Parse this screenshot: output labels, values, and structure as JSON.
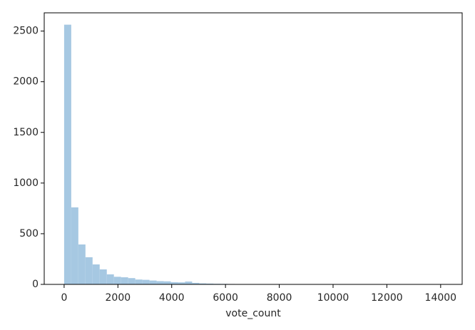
{
  "chart_data": {
    "type": "histogram",
    "xlabel": "vote_count",
    "color": "#a6c8e2",
    "bins": [
      0,
      264.5,
      528.9,
      793.4,
      1057.8,
      1322.3,
      1586.8,
      1851.2,
      2115.7,
      2380.2,
      2644.6,
      2909.1,
      3173.5,
      3438.0,
      3702.5,
      3966.9,
      4231.4,
      4495.8,
      4760.3,
      5024.8,
      5289.2,
      5553.7,
      5818.2,
      6082.6,
      6347.1,
      6611.5,
      6876.0,
      7140.5,
      7404.9,
      7669.4,
      7933.8,
      8198.3,
      8462.8,
      8727.2,
      8991.7,
      9256.2,
      9520.6,
      9785.1,
      10049.5,
      10314.0,
      10578.5,
      10842.9,
      11107.4,
      11371.8,
      11636.3,
      11900.8,
      12165.2,
      12429.7,
      12694.2,
      12958.6,
      13223.1,
      13487.5,
      13752.0
    ],
    "values": [
      2563,
      760,
      394,
      268,
      197,
      148,
      99,
      75,
      70,
      62,
      48,
      45,
      38,
      32,
      30,
      22,
      20,
      28,
      15,
      10,
      8,
      6,
      5,
      4,
      3,
      3,
      2,
      2,
      1,
      1,
      1,
      1,
      0,
      1,
      0,
      1,
      0,
      0,
      0,
      1,
      0,
      0,
      0,
      0,
      0,
      1,
      0,
      0,
      0,
      0,
      0,
      1
    ],
    "xlim": [
      -740,
      14800
    ],
    "ylim": [
      0,
      2680
    ],
    "xticks": [
      0,
      2000,
      4000,
      6000,
      8000,
      10000,
      12000,
      14000
    ],
    "yticks": [
      0,
      500,
      1000,
      1500,
      2000,
      2500
    ]
  }
}
